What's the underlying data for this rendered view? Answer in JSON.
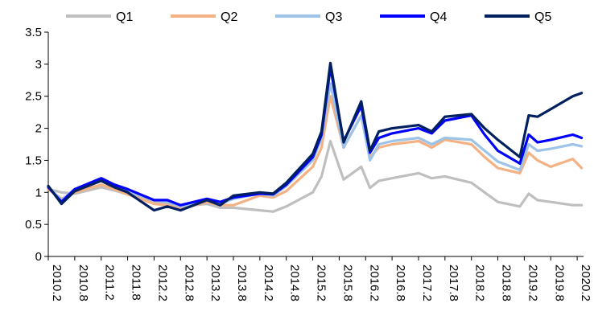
{
  "chart_data": {
    "type": "line",
    "title": "",
    "xlabel": "",
    "ylabel": "",
    "ylim": [
      0,
      3.5
    ],
    "yticks": [
      "0",
      "0.5",
      "1",
      "1.5",
      "2",
      "2.5",
      "3",
      "3.5"
    ],
    "xticks": [
      "2010.2",
      "2010.8",
      "2011.2",
      "2011.8",
      "2012.2",
      "2012.8",
      "2013.2",
      "2013.8",
      "2014.2",
      "2014.8",
      "2015.2",
      "2015.8",
      "2016.2",
      "2016.8",
      "2017.2",
      "2017.8",
      "2018.2",
      "2018.8",
      "2019.2",
      "2019.8",
      "2020.2"
    ],
    "grid": false,
    "legend_position": "top",
    "series": [
      {
        "name": "Q1",
        "color": "#BFBFBF",
        "points": [
          [
            "2010.2",
            1.05
          ],
          [
            "2010.5",
            1.0
          ],
          [
            "2010.8",
            0.98
          ],
          [
            "2011.2",
            1.08
          ],
          [
            "2011.5",
            1.03
          ],
          [
            "2011.8",
            0.97
          ],
          [
            "2012.2",
            0.86
          ],
          [
            "2012.5",
            0.82
          ],
          [
            "2012.8",
            0.78
          ],
          [
            "2013.2",
            0.82
          ],
          [
            "2013.5",
            0.76
          ],
          [
            "2013.8",
            0.76
          ],
          [
            "2014.2",
            0.72
          ],
          [
            "2014.5",
            0.7
          ],
          [
            "2014.8",
            0.78
          ],
          [
            "2015.2",
            1.0
          ],
          [
            "2015.4",
            1.25
          ],
          [
            "2015.6",
            1.8
          ],
          [
            "2015.9",
            1.2
          ],
          [
            "2016.1",
            1.4
          ],
          [
            "2016.3",
            1.07
          ],
          [
            "2016.5",
            1.18
          ],
          [
            "2016.8",
            1.22
          ],
          [
            "2017.2",
            1.3
          ],
          [
            "2017.5",
            1.22
          ],
          [
            "2017.8",
            1.25
          ],
          [
            "2018.2",
            1.15
          ],
          [
            "2018.5",
            1.0
          ],
          [
            "2018.8",
            0.85
          ],
          [
            "2019.1",
            0.78
          ],
          [
            "2019.3",
            0.98
          ],
          [
            "2019.5",
            0.88
          ],
          [
            "2019.8",
            0.85
          ],
          [
            "2020.1",
            0.8
          ],
          [
            "2020.3",
            0.8
          ]
        ]
      },
      {
        "name": "Q2",
        "color": "#F4B183",
        "points": [
          [
            "2010.2",
            1.05
          ],
          [
            "2010.5",
            0.9
          ],
          [
            "2010.8",
            1.0
          ],
          [
            "2011.2",
            1.12
          ],
          [
            "2011.5",
            1.05
          ],
          [
            "2011.8",
            0.97
          ],
          [
            "2012.2",
            0.82
          ],
          [
            "2012.5",
            0.8
          ],
          [
            "2012.8",
            0.74
          ],
          [
            "2013.2",
            0.85
          ],
          [
            "2013.5",
            0.8
          ],
          [
            "2013.8",
            0.8
          ],
          [
            "2014.2",
            0.95
          ],
          [
            "2014.5",
            0.92
          ],
          [
            "2014.8",
            1.02
          ],
          [
            "2015.2",
            1.4
          ],
          [
            "2015.4",
            1.7
          ],
          [
            "2015.6",
            2.5
          ],
          [
            "2015.9",
            1.7
          ],
          [
            "2016.1",
            2.2
          ],
          [
            "2016.3",
            1.55
          ],
          [
            "2016.5",
            1.7
          ],
          [
            "2016.8",
            1.75
          ],
          [
            "2017.2",
            1.8
          ],
          [
            "2017.5",
            1.7
          ],
          [
            "2017.8",
            1.82
          ],
          [
            "2018.2",
            1.75
          ],
          [
            "2018.5",
            1.55
          ],
          [
            "2018.8",
            1.38
          ],
          [
            "2019.1",
            1.3
          ],
          [
            "2019.3",
            1.62
          ],
          [
            "2019.5",
            1.5
          ],
          [
            "2019.8",
            1.4
          ],
          [
            "2020.1",
            1.52
          ],
          [
            "2020.3",
            1.38
          ]
        ]
      },
      {
        "name": "Q3",
        "color": "#9DC3E6",
        "points": [
          [
            "2010.2",
            1.08
          ],
          [
            "2010.5",
            0.88
          ],
          [
            "2010.8",
            1.05
          ],
          [
            "2011.2",
            1.18
          ],
          [
            "2011.5",
            1.08
          ],
          [
            "2011.8",
            1.02
          ],
          [
            "2012.2",
            0.88
          ],
          [
            "2012.5",
            0.85
          ],
          [
            "2012.8",
            0.78
          ],
          [
            "2013.2",
            0.88
          ],
          [
            "2013.5",
            0.82
          ],
          [
            "2013.8",
            0.9
          ],
          [
            "2014.2",
            0.98
          ],
          [
            "2014.5",
            0.95
          ],
          [
            "2014.8",
            1.1
          ],
          [
            "2015.2",
            1.5
          ],
          [
            "2015.4",
            1.85
          ],
          [
            "2015.6",
            2.7
          ],
          [
            "2015.9",
            1.7
          ],
          [
            "2016.1",
            2.2
          ],
          [
            "2016.3",
            1.5
          ],
          [
            "2016.5",
            1.75
          ],
          [
            "2016.8",
            1.8
          ],
          [
            "2017.2",
            1.85
          ],
          [
            "2017.5",
            1.75
          ],
          [
            "2017.8",
            1.85
          ],
          [
            "2018.2",
            1.82
          ],
          [
            "2018.5",
            1.65
          ],
          [
            "2018.8",
            1.48
          ],
          [
            "2019.1",
            1.35
          ],
          [
            "2019.3",
            1.75
          ],
          [
            "2019.5",
            1.65
          ],
          [
            "2019.8",
            1.68
          ],
          [
            "2020.1",
            1.75
          ],
          [
            "2020.3",
            1.72
          ]
        ]
      },
      {
        "name": "Q4",
        "color": "#0000FF",
        "points": [
          [
            "2010.2",
            1.08
          ],
          [
            "2010.5",
            0.85
          ],
          [
            "2010.8",
            1.05
          ],
          [
            "2011.2",
            1.22
          ],
          [
            "2011.5",
            1.12
          ],
          [
            "2011.8",
            1.05
          ],
          [
            "2012.2",
            0.88
          ],
          [
            "2012.5",
            0.88
          ],
          [
            "2012.8",
            0.8
          ],
          [
            "2013.2",
            0.9
          ],
          [
            "2013.5",
            0.85
          ],
          [
            "2013.8",
            0.92
          ],
          [
            "2014.2",
            0.98
          ],
          [
            "2014.5",
            0.97
          ],
          [
            "2014.8",
            1.12
          ],
          [
            "2015.2",
            1.55
          ],
          [
            "2015.4",
            1.9
          ],
          [
            "2015.6",
            2.95
          ],
          [
            "2015.9",
            1.8
          ],
          [
            "2016.1",
            2.35
          ],
          [
            "2016.3",
            1.62
          ],
          [
            "2016.5",
            1.85
          ],
          [
            "2016.8",
            1.92
          ],
          [
            "2017.2",
            2.0
          ],
          [
            "2017.5",
            1.92
          ],
          [
            "2017.8",
            2.12
          ],
          [
            "2018.2",
            2.2
          ],
          [
            "2018.5",
            1.9
          ],
          [
            "2018.8",
            1.65
          ],
          [
            "2019.1",
            1.45
          ],
          [
            "2019.3",
            1.9
          ],
          [
            "2019.5",
            1.78
          ],
          [
            "2019.8",
            1.82
          ],
          [
            "2020.1",
            1.9
          ],
          [
            "2020.3",
            1.85
          ]
        ]
      },
      {
        "name": "Q5",
        "color": "#002060",
        "points": [
          [
            "2010.2",
            1.1
          ],
          [
            "2010.5",
            0.82
          ],
          [
            "2010.8",
            1.02
          ],
          [
            "2011.2",
            1.18
          ],
          [
            "2011.5",
            1.08
          ],
          [
            "2011.8",
            1.0
          ],
          [
            "2012.2",
            0.72
          ],
          [
            "2012.5",
            0.78
          ],
          [
            "2012.8",
            0.72
          ],
          [
            "2013.2",
            0.88
          ],
          [
            "2013.5",
            0.8
          ],
          [
            "2013.8",
            0.95
          ],
          [
            "2014.2",
            1.0
          ],
          [
            "2014.5",
            0.98
          ],
          [
            "2014.8",
            1.15
          ],
          [
            "2015.2",
            1.6
          ],
          [
            "2015.4",
            1.95
          ],
          [
            "2015.6",
            3.02
          ],
          [
            "2015.9",
            1.78
          ],
          [
            "2016.1",
            2.42
          ],
          [
            "2016.3",
            1.65
          ],
          [
            "2016.5",
            1.95
          ],
          [
            "2016.8",
            2.0
          ],
          [
            "2017.2",
            2.05
          ],
          [
            "2017.5",
            1.95
          ],
          [
            "2017.8",
            2.18
          ],
          [
            "2018.2",
            2.22
          ],
          [
            "2018.5",
            2.0
          ],
          [
            "2018.8",
            1.82
          ],
          [
            "2019.1",
            1.55
          ],
          [
            "2019.3",
            2.2
          ],
          [
            "2019.5",
            2.18
          ],
          [
            "2019.8",
            2.3
          ],
          [
            "2020.1",
            2.5
          ],
          [
            "2020.3",
            2.55
          ]
        ]
      }
    ]
  }
}
